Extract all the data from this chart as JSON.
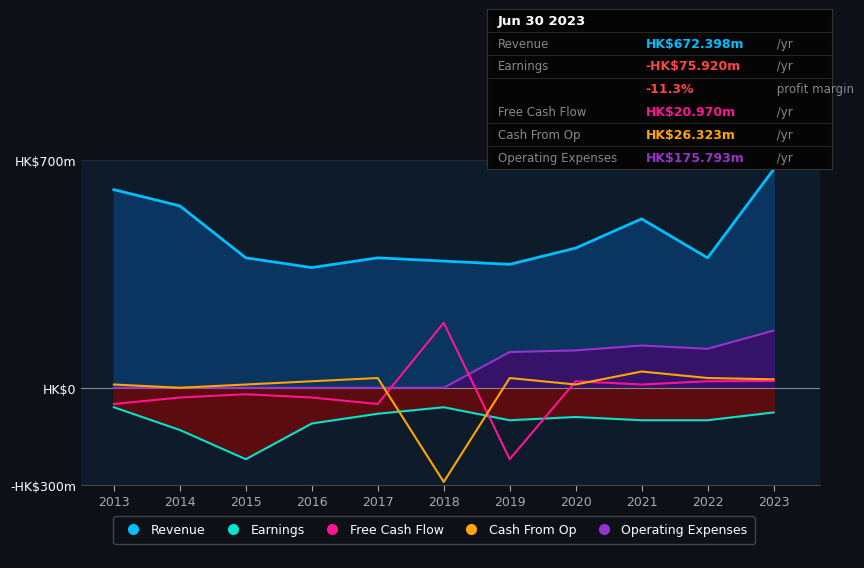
{
  "bg_color": "#0d1117",
  "chart_bg": "#0d1b2a",
  "title": "Jun 30 2023",
  "years": [
    2013,
    2014,
    2015,
    2016,
    2017,
    2018,
    2019,
    2020,
    2021,
    2022,
    2023
  ],
  "revenue": [
    610,
    560,
    400,
    370,
    400,
    390,
    380,
    430,
    520,
    400,
    672
  ],
  "earnings": [
    -60,
    -130,
    -220,
    -110,
    -80,
    -60,
    -100,
    -90,
    -100,
    -100,
    -76
  ],
  "free_cash_flow": [
    -50,
    -30,
    -20,
    -30,
    -50,
    200,
    -220,
    20,
    10,
    20,
    21
  ],
  "cash_from_op": [
    10,
    0,
    10,
    20,
    30,
    -290,
    30,
    10,
    50,
    30,
    26
  ],
  "op_expenses": [
    0,
    0,
    0,
    0,
    0,
    0,
    110,
    115,
    130,
    120,
    176
  ],
  "revenue_color": "#00bfff",
  "earnings_color": "#00e5cc",
  "fcf_color": "#ff1493",
  "cfo_color": "#ffa500",
  "opex_color": "#9932cc",
  "revenue_fill": "#0a3a6b",
  "earnings_fill": "#6b0a0a",
  "opex_fill": "#3d0e6b",
  "ylim_min": -300,
  "ylim_max": 700,
  "yticks": [
    -300,
    0,
    700
  ],
  "ytick_labels": [
    "-HK$300m",
    "HK$0",
    "HK$700m"
  ],
  "legend_labels": [
    "Revenue",
    "Earnings",
    "Free Cash Flow",
    "Cash From Op",
    "Operating Expenses"
  ],
  "legend_colors": [
    "#00bfff",
    "#00e5cc",
    "#ff1493",
    "#ffa500",
    "#9932cc"
  ]
}
